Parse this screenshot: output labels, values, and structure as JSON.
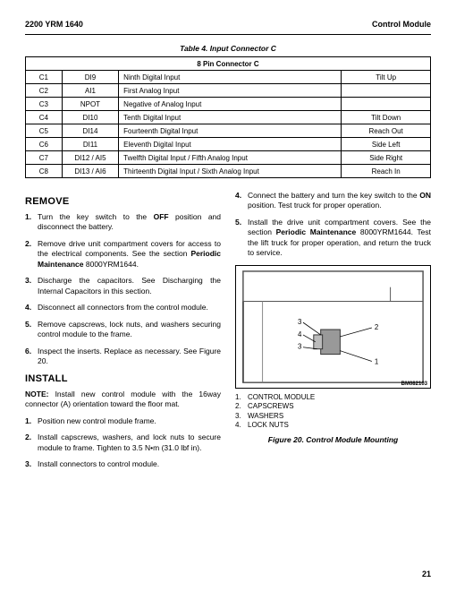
{
  "header": {
    "left": "2200 YRM 1640",
    "right": "Control Module"
  },
  "table": {
    "title": "Table 4.  Input Connector C",
    "subheader": "8 Pin Connector C",
    "rows": [
      {
        "pin": "C1",
        "sig": "DI9",
        "desc": "Ninth Digital Input",
        "fn": "Tilt Up"
      },
      {
        "pin": "C2",
        "sig": "AI1",
        "desc": "First Analog Input",
        "fn": ""
      },
      {
        "pin": "C3",
        "sig": "NPOT",
        "desc": "Negative of Analog Input",
        "fn": ""
      },
      {
        "pin": "C4",
        "sig": "DI10",
        "desc": "Tenth Digital Input",
        "fn": "Tilt Down"
      },
      {
        "pin": "C5",
        "sig": "DI14",
        "desc": "Fourteenth Digital Input",
        "fn": "Reach Out"
      },
      {
        "pin": "C6",
        "sig": "DI11",
        "desc": "Eleventh Digital Input",
        "fn": "Side Left"
      },
      {
        "pin": "C7",
        "sig": "DI12 / AI5",
        "desc": "Twelfth Digital Input / Fifth Analog Input",
        "fn": "Side Right"
      },
      {
        "pin": "C8",
        "sig": "DI13 / AI6",
        "desc": "Thirteenth Digital Input / Sixth Analog Input",
        "fn": "Reach In"
      }
    ]
  },
  "remove": {
    "heading": "REMOVE",
    "steps": {
      "s1a": "Turn the key switch to the ",
      "s1b": "OFF",
      "s1c": " position and disconnect the battery.",
      "s2a": "Remove drive unit compartment covers for access to the electrical components. See the section ",
      "s2b": "Periodic Maintenance",
      "s2c": " 8000YRM1644.",
      "s3": "Discharge the capacitors. See Discharging the Internal Capacitors in this section.",
      "s4": "Disconnect all connectors from the control module.",
      "s5": "Remove capscrews, lock nuts, and washers securing control module to the frame.",
      "s6": "Inspect the inserts. Replace as necessary. See Figure 20."
    }
  },
  "install": {
    "heading": "INSTALL",
    "note_label": "NOTE:",
    "note_text": "   Install new control module with the 16way connector (A) orientation toward the floor mat.",
    "steps": {
      "s1": "Position new control module frame.",
      "s2": "Install capscrews, washers, and lock nuts to secure module to frame. Tighten to 3.5 N•m (31.0 lbf in).",
      "s3": "Install connectors to control module.",
      "s4a": "Connect the battery and turn the key switch to the ",
      "s4b": "ON",
      "s4c": " position. Test truck for proper operation.",
      "s5a": "Install the drive unit compartment covers. See the section ",
      "s5b": "Periodic Maintenance",
      "s5c": " 8000YRM1644. Test the lift truck for proper operation, and return the truck to service."
    }
  },
  "figure": {
    "legend": {
      "l1": "CONTROL MODULE",
      "l2": "CAPSCREWS",
      "l3": "WASHERS",
      "l4": "LOCK NUTS"
    },
    "caption": "Figure 20. Control Module Mounting",
    "id_label": "BM082103"
  },
  "page_number": "21"
}
